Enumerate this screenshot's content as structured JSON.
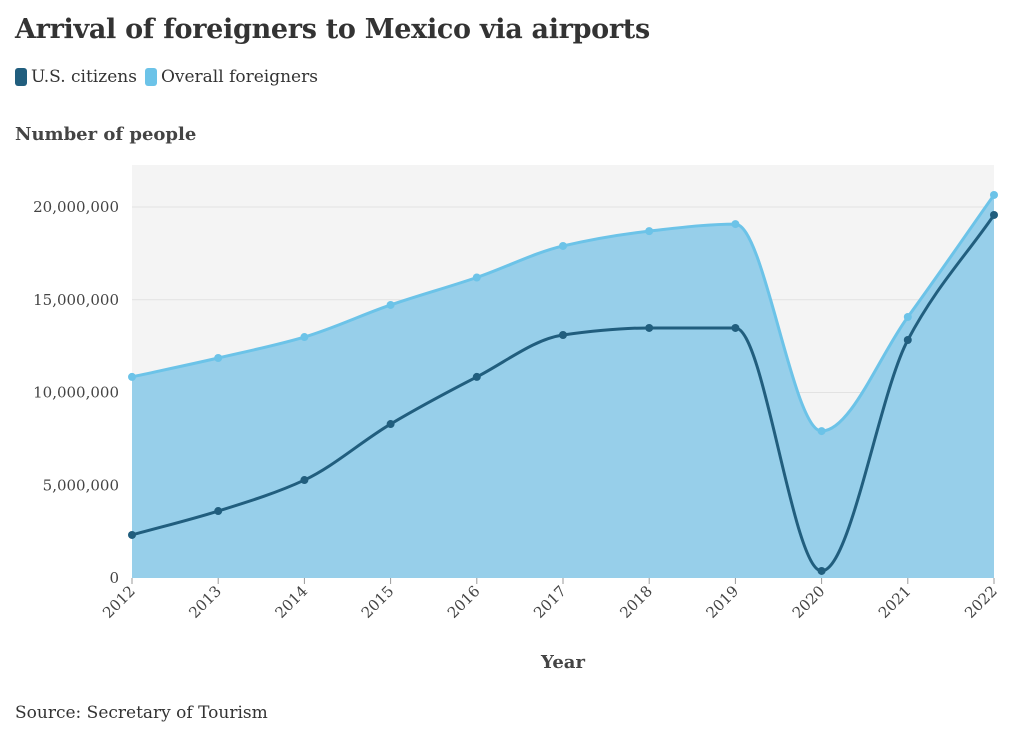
{
  "title": "Arrival of foreigners to Mexico via airports",
  "source": "Source: Secretary of Tourism",
  "chart_data": {
    "type": "area",
    "title": "Arrival of foreigners to Mexico via airports",
    "xlabel": "Year",
    "ylabel": "Number of people",
    "categories": [
      "2012",
      "2013",
      "2014",
      "2015",
      "2016",
      "2017",
      "2018",
      "2019",
      "2020",
      "2021",
      "2022"
    ],
    "ylim": [
      0,
      22000000
    ],
    "yticks": [
      0,
      5000000,
      10000000,
      15000000,
      20000000
    ],
    "ytick_labels": [
      "0",
      "5,000,000",
      "10,000,000",
      "15,000,000",
      "20,000,000"
    ],
    "grid": true,
    "legend_position": "top-left",
    "series": [
      {
        "name": "U.S. citizens",
        "color": "#215e7e",
        "values": [
          2320000,
          3610000,
          5280000,
          8300000,
          10840000,
          13100000,
          13480000,
          13480000,
          380000,
          12830000,
          19570000
        ]
      },
      {
        "name": "Overall foreigners",
        "color": "#6cc3e8",
        "fill": "#97cfea",
        "values": [
          10840000,
          11860000,
          12990000,
          14720000,
          16200000,
          17900000,
          18700000,
          19080000,
          7920000,
          14070000,
          20650000
        ]
      }
    ]
  }
}
